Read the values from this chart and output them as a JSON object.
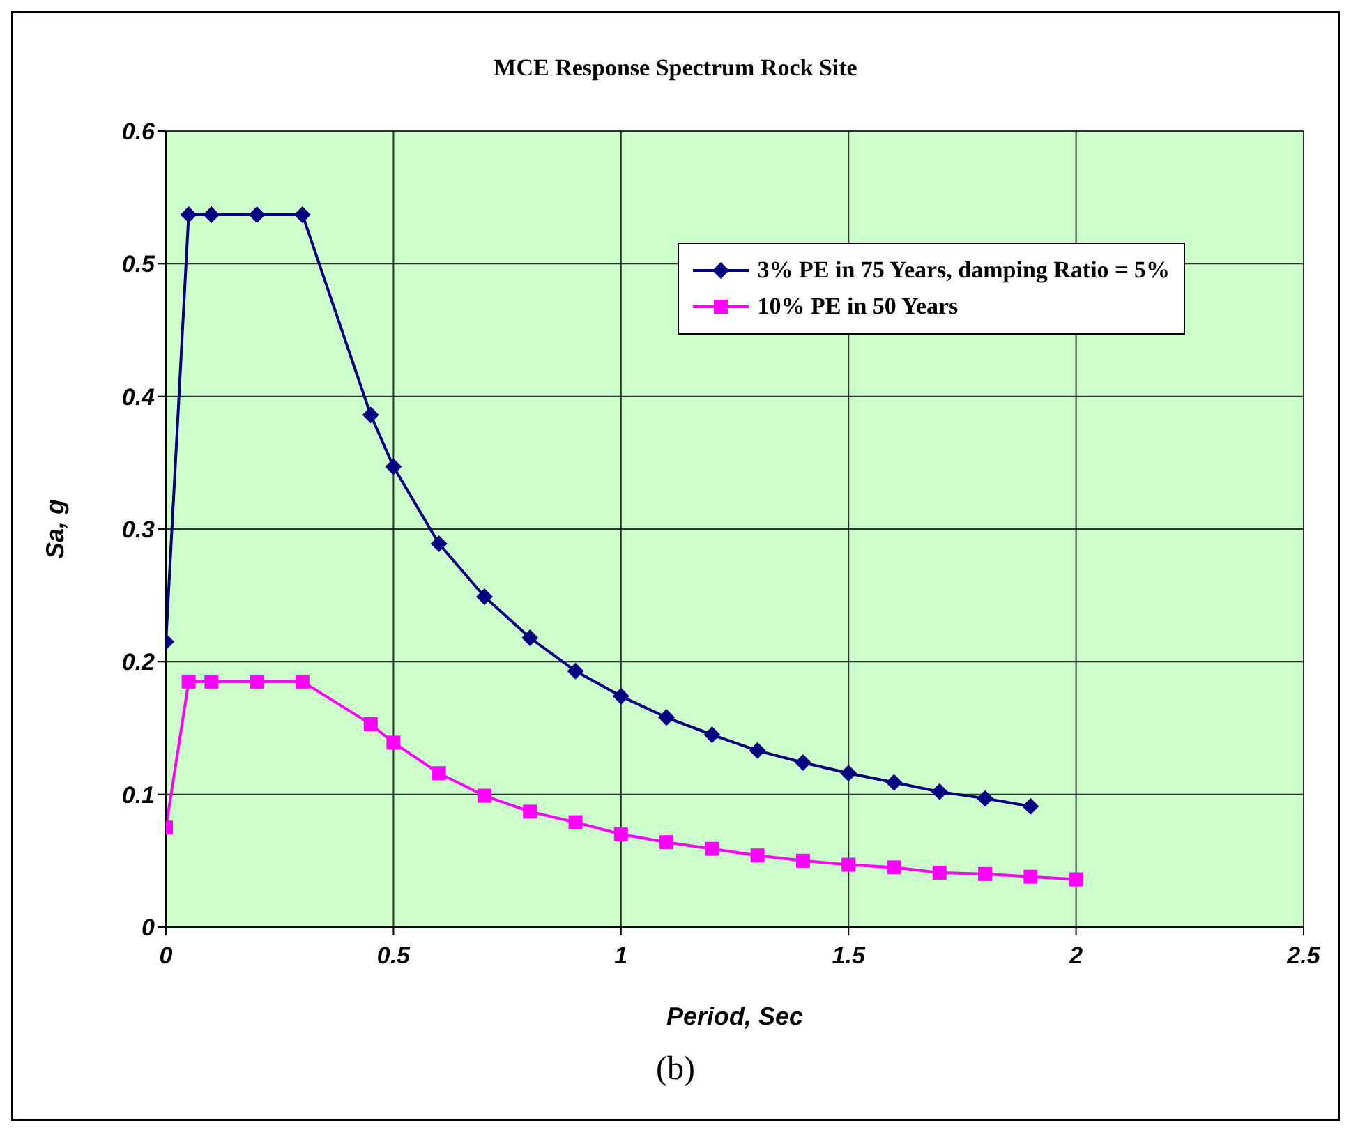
{
  "chart_data": {
    "type": "line",
    "title": "MCE Response Spectrum Rock Site",
    "xlabel": "Period, Sec",
    "ylabel": "Sa, g",
    "annotations": [
      "(b)"
    ],
    "series": [
      {
        "name": "3% PE in 75 Years, damping Ratio = 5%",
        "color": "#000080",
        "marker": "diamond",
        "x": [
          0,
          0.05,
          0.1,
          0.2,
          0.3,
          0.45,
          0.5,
          0.6,
          0.7,
          0.8,
          0.9,
          1.0,
          1.1,
          1.2,
          1.3,
          1.4,
          1.5,
          1.6,
          1.7,
          1.8,
          1.9
        ],
        "values": [
          0.215,
          0.537,
          0.537,
          0.537,
          0.537,
          0.386,
          0.347,
          0.289,
          0.249,
          0.218,
          0.193,
          0.174,
          0.158,
          0.145,
          0.133,
          0.124,
          0.116,
          0.109,
          0.102,
          0.097,
          0.091
        ]
      },
      {
        "name": "10% PE in 50 Years",
        "color": "#ff00ff",
        "marker": "square",
        "x": [
          0,
          0.05,
          0.1,
          0.2,
          0.3,
          0.45,
          0.5,
          0.6,
          0.7,
          0.8,
          0.9,
          1.0,
          1.1,
          1.2,
          1.3,
          1.4,
          1.5,
          1.6,
          1.7,
          1.8,
          1.9,
          2.0
        ],
        "values": [
          0.075,
          0.185,
          0.185,
          0.185,
          0.185,
          0.153,
          0.139,
          0.116,
          0.099,
          0.087,
          0.079,
          0.07,
          0.064,
          0.059,
          0.054,
          0.05,
          0.047,
          0.045,
          0.041,
          0.04,
          0.038,
          0.036
        ]
      }
    ],
    "xlim": [
      0,
      2.5
    ],
    "xticks": [
      0,
      0.5,
      1,
      1.5,
      2,
      2.5
    ],
    "ylim": [
      0,
      0.6
    ],
    "yticks": [
      0,
      0.1,
      0.2,
      0.3,
      0.4,
      0.5,
      0.6
    ],
    "grid": true,
    "legend": "top right"
  }
}
